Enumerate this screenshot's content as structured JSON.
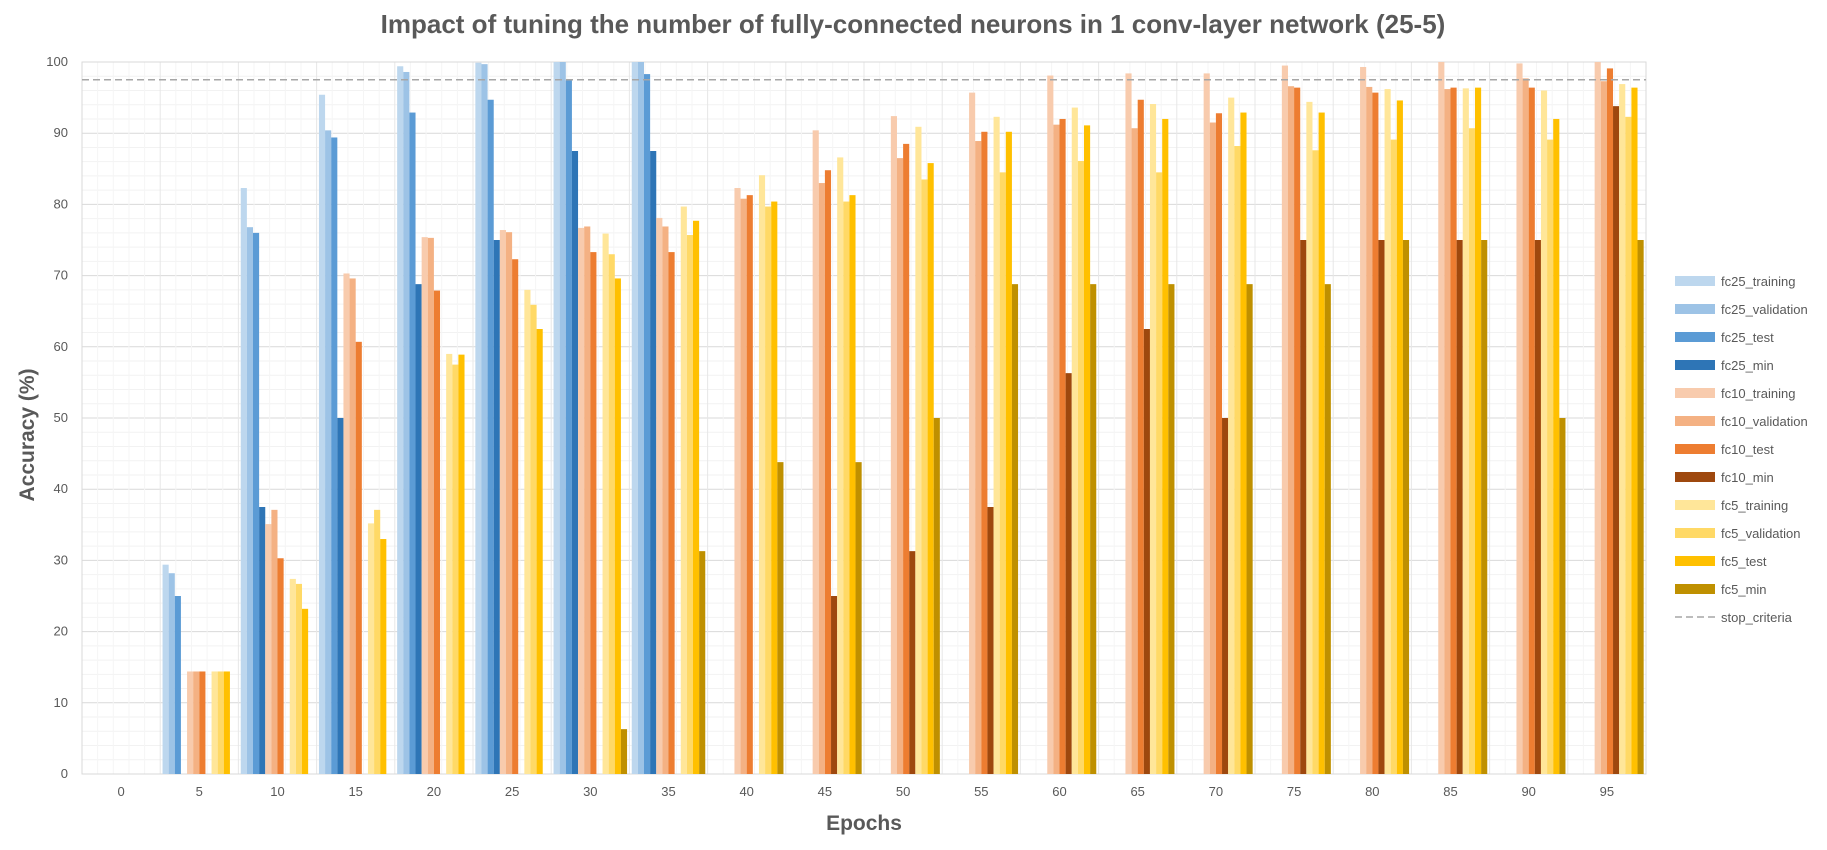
{
  "chart_data": {
    "type": "bar",
    "title": "Impact of tuning the number of fully-connected neurons in 1 conv-layer network (25-5)",
    "xlabel": "Epochs",
    "ylabel": "Accuracy (%)",
    "ylim": [
      0,
      100
    ],
    "yticks": [
      0,
      10,
      20,
      30,
      40,
      50,
      60,
      70,
      80,
      90,
      100
    ],
    "categories": [
      "0",
      "5",
      "10",
      "15",
      "20",
      "25",
      "30",
      "35",
      "40",
      "45",
      "50",
      "55",
      "60",
      "65",
      "70",
      "75",
      "80",
      "85",
      "90",
      "95"
    ],
    "grid": true,
    "legend_position": "right",
    "series": [
      {
        "name": "fc25_training",
        "color": "#bdd7ee",
        "values": [
          0,
          29.4,
          82.3,
          95.4,
          99.4,
          99.9,
          100,
          100,
          null,
          null,
          null,
          null,
          null,
          null,
          null,
          null,
          null,
          null,
          null,
          null
        ]
      },
      {
        "name": "fc25_validation",
        "color": "#9dc3e6",
        "values": [
          0,
          28.2,
          76.8,
          90.4,
          98.6,
          99.7,
          100,
          100,
          null,
          null,
          null,
          null,
          null,
          null,
          null,
          null,
          null,
          null,
          null,
          null
        ]
      },
      {
        "name": "fc25_test",
        "color": "#5b9bd5",
        "values": [
          0,
          25.0,
          76.0,
          89.4,
          92.9,
          94.7,
          97.4,
          98.3,
          null,
          null,
          null,
          null,
          null,
          null,
          null,
          null,
          null,
          null,
          null,
          null
        ]
      },
      {
        "name": "fc25_min",
        "color": "#2e75b6",
        "values": [
          0,
          0,
          37.5,
          50.0,
          68.8,
          75.0,
          87.5,
          87.5,
          null,
          null,
          null,
          null,
          null,
          null,
          null,
          null,
          null,
          null,
          null,
          null
        ]
      },
      {
        "name": "fc10_training",
        "color": "#f8cbad",
        "values": [
          0,
          14.4,
          35.1,
          70.3,
          75.4,
          76.4,
          76.7,
          78.1,
          82.3,
          90.4,
          92.4,
          95.7,
          98.1,
          98.4,
          98.4,
          99.5,
          99.3,
          100,
          99.8,
          100
        ]
      },
      {
        "name": "fc10_validation",
        "color": "#f4b183",
        "values": [
          0,
          14.4,
          37.1,
          69.6,
          75.3,
          76.1,
          76.9,
          76.9,
          80.8,
          83.0,
          86.5,
          88.9,
          91.2,
          90.7,
          91.5,
          96.6,
          96.5,
          96.2,
          97.7,
          97.3
        ]
      },
      {
        "name": "fc10_test",
        "color": "#ed7d31",
        "values": [
          0,
          14.4,
          30.3,
          60.7,
          67.9,
          72.3,
          73.3,
          73.3,
          81.3,
          84.8,
          88.5,
          90.2,
          92.0,
          94.7,
          92.8,
          96.4,
          95.7,
          96.4,
          96.4,
          99.1
        ]
      },
      {
        "name": "fc10_min",
        "color": "#9e480e",
        "values": [
          0,
          0,
          0,
          0,
          0,
          0,
          0,
          0,
          0,
          25.0,
          31.3,
          37.5,
          56.3,
          62.5,
          50.0,
          75.0,
          75.0,
          75.0,
          75.0,
          93.8
        ]
      },
      {
        "name": "fc5_training",
        "color": "#ffe699",
        "values": [
          0,
          14.4,
          27.4,
          35.2,
          59.0,
          68.0,
          75.9,
          79.7,
          84.1,
          86.6,
          90.9,
          92.3,
          93.6,
          94.1,
          95.0,
          94.4,
          96.2,
          96.3,
          96.0,
          96.9
        ]
      },
      {
        "name": "fc5_validation",
        "color": "#ffd966",
        "values": [
          0,
          14.4,
          26.7,
          37.1,
          57.5,
          65.9,
          73.0,
          75.7,
          79.7,
          80.4,
          83.5,
          84.5,
          86.1,
          84.5,
          88.2,
          87.6,
          89.1,
          90.7,
          89.1,
          92.3
        ]
      },
      {
        "name": "fc5_test",
        "color": "#ffc000",
        "values": [
          0,
          14.4,
          23.2,
          33.0,
          58.9,
          62.5,
          69.6,
          77.7,
          80.4,
          81.3,
          85.8,
          90.2,
          91.1,
          92.0,
          92.9,
          92.9,
          94.6,
          96.4,
          92.0,
          96.4
        ]
      },
      {
        "name": "fc5_min",
        "color": "#bf9000",
        "values": [
          0,
          0,
          0,
          0,
          0,
          0,
          6.3,
          31.3,
          43.8,
          43.8,
          50.0,
          68.8,
          68.8,
          68.8,
          68.8,
          68.8,
          75.0,
          75.0,
          50.0,
          75.0
        ]
      },
      {
        "name": "stop_criteria",
        "type": "line",
        "style": "dashed",
        "color": "#a6a6a6",
        "value": 97.5
      }
    ]
  }
}
